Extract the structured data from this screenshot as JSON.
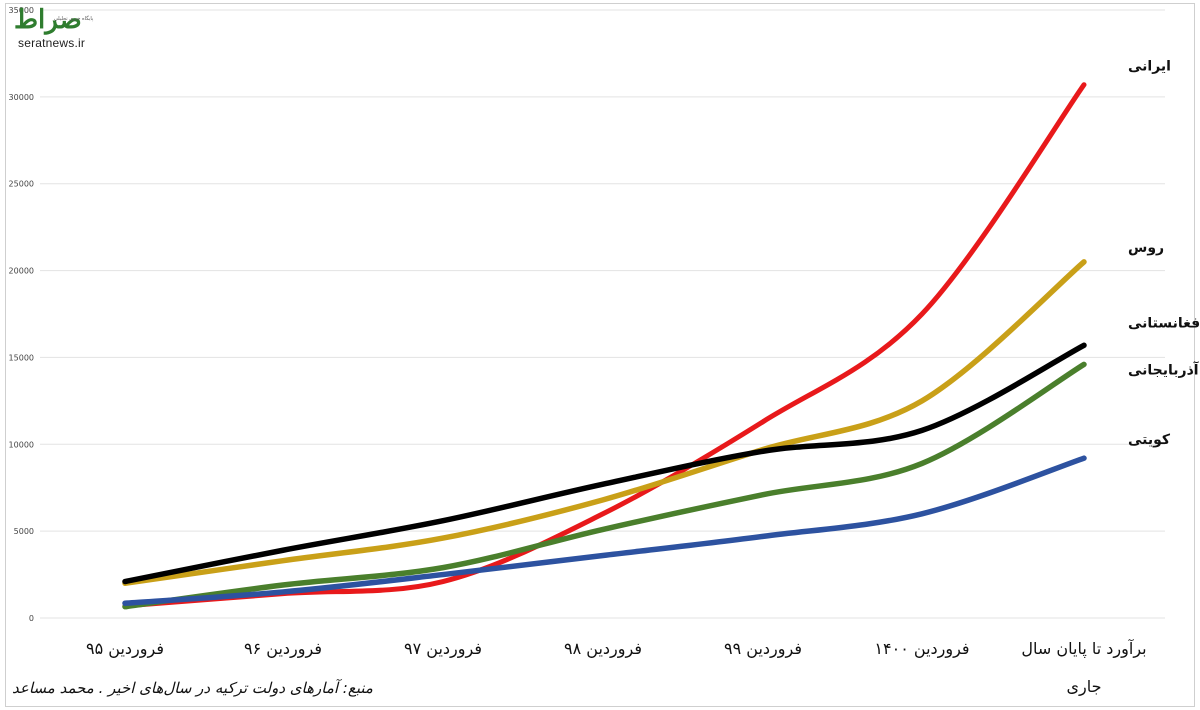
{
  "watermark": {
    "brand": "صراط",
    "tagline": "پایگاه خبری تحلیلی",
    "site": "seratnews.ir"
  },
  "source_note": "منبع: آمارهای دولت ترکیه در سال‌های اخیر . محمد مساعد",
  "chart_data": {
    "type": "line",
    "categories": [
      "فروردین ۹۵",
      "فروردین ۹۶",
      "فروردین ۹۷",
      "فروردین ۹۸",
      "فروردین ۹۹",
      "فروردین ۱۴۰۰",
      "برآورد تا پایان سال جاری"
    ],
    "ylim": [
      0,
      35000
    ],
    "yticks": [
      0,
      5000,
      10000,
      15000,
      20000,
      25000,
      30000,
      35000
    ],
    "grid": true,
    "legend": "inline-right",
    "series": [
      {
        "name": "ایرانی",
        "color": "#e8191b",
        "values": [
          700,
          1400,
          2100,
          6000,
          11300,
          17500,
          30700
        ]
      },
      {
        "name": "روس",
        "color": "#c9a018",
        "values": [
          2000,
          3300,
          4600,
          6800,
          9700,
          12500,
          20500
        ]
      },
      {
        "name": "افغانستانی",
        "color": "#000000",
        "values": [
          2100,
          3900,
          5600,
          7700,
          9600,
          10800,
          15700
        ]
      },
      {
        "name": "آذربایجانی",
        "color": "#4a7f2c",
        "values": [
          650,
          1900,
          2900,
          5100,
          7100,
          8900,
          14600
        ]
      },
      {
        "name": "کویتی",
        "color": "#2d52a0",
        "values": [
          850,
          1500,
          2500,
          3600,
          4700,
          6000,
          9200
        ]
      }
    ]
  }
}
